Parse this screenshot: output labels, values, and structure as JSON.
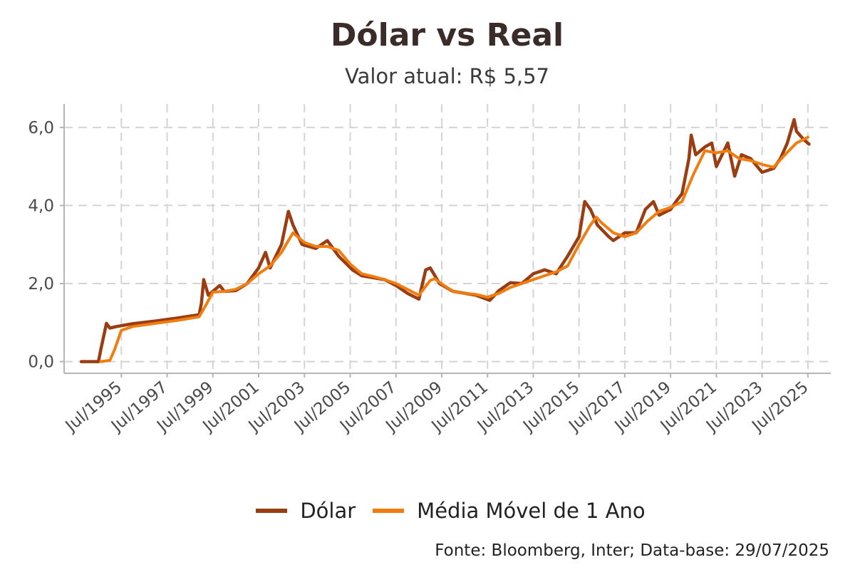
{
  "chart_data": {
    "type": "line",
    "title": "Dólar vs Real",
    "subtitle": "Valor atual: R$ 5,57",
    "source": "Fonte: Bloomberg, Inter; Data-base: 29/07/2025",
    "xlim": [
      1993.0,
      2026.5
    ],
    "ylim": [
      -0.3,
      6.6
    ],
    "y_ticks": [
      0,
      2,
      4,
      6
    ],
    "y_tick_labels": [
      "0,0",
      "2,0",
      "4,0",
      "6,0"
    ],
    "x_ticks": [
      1995.5,
      1997.5,
      1999.5,
      2001.5,
      2003.5,
      2005.5,
      2007.5,
      2009.5,
      2011.5,
      2013.5,
      2015.5,
      2017.5,
      2019.5,
      2021.5,
      2023.5,
      2025.5
    ],
    "x_tick_labels": [
      "Jul/1995",
      "Jul/1997",
      "Jul/1999",
      "Jul/2001",
      "Jul/2003",
      "Jul/2005",
      "Jul/2007",
      "Jul/2009",
      "Jul/2011",
      "Jul/2013",
      "Jul/2015",
      "Jul/2017",
      "Jul/2019",
      "Jul/2021",
      "Jul/2023",
      "Jul/2025"
    ],
    "grid": true,
    "legend_position": "bottom",
    "series": [
      {
        "name": "Dólar",
        "color": "#9a3d12",
        "points": [
          [
            1993.75,
            0.0
          ],
          [
            1994.5,
            0.0
          ],
          [
            1994.6,
            0.3
          ],
          [
            1994.85,
            0.98
          ],
          [
            1995.0,
            0.86
          ],
          [
            1995.3,
            0.9
          ],
          [
            1996.0,
            0.97
          ],
          [
            1997.0,
            1.04
          ],
          [
            1998.0,
            1.12
          ],
          [
            1998.9,
            1.2
          ],
          [
            1999.0,
            1.5
          ],
          [
            1999.1,
            2.1
          ],
          [
            1999.3,
            1.7
          ],
          [
            1999.8,
            1.95
          ],
          [
            2000.0,
            1.8
          ],
          [
            2000.5,
            1.82
          ],
          [
            2001.0,
            2.0
          ],
          [
            2001.5,
            2.4
          ],
          [
            2001.8,
            2.8
          ],
          [
            2002.0,
            2.4
          ],
          [
            2002.5,
            3.0
          ],
          [
            2002.8,
            3.85
          ],
          [
            2003.0,
            3.5
          ],
          [
            2003.4,
            3.0
          ],
          [
            2004.0,
            2.9
          ],
          [
            2004.5,
            3.1
          ],
          [
            2005.0,
            2.7
          ],
          [
            2005.6,
            2.35
          ],
          [
            2006.0,
            2.2
          ],
          [
            2007.0,
            2.1
          ],
          [
            2007.5,
            1.95
          ],
          [
            2008.0,
            1.75
          ],
          [
            2008.5,
            1.6
          ],
          [
            2008.8,
            2.35
          ],
          [
            2009.0,
            2.4
          ],
          [
            2009.4,
            2.0
          ],
          [
            2010.0,
            1.8
          ],
          [
            2011.0,
            1.7
          ],
          [
            2011.6,
            1.57
          ],
          [
            2012.0,
            1.82
          ],
          [
            2012.5,
            2.02
          ],
          [
            2013.0,
            2.0
          ],
          [
            2013.5,
            2.25
          ],
          [
            2014.0,
            2.35
          ],
          [
            2014.5,
            2.25
          ],
          [
            2015.0,
            2.7
          ],
          [
            2015.5,
            3.2
          ],
          [
            2015.75,
            4.1
          ],
          [
            2016.0,
            3.9
          ],
          [
            2016.3,
            3.5
          ],
          [
            2016.8,
            3.2
          ],
          [
            2017.0,
            3.1
          ],
          [
            2017.5,
            3.3
          ],
          [
            2018.0,
            3.3
          ],
          [
            2018.4,
            3.9
          ],
          [
            2018.75,
            4.1
          ],
          [
            2019.0,
            3.75
          ],
          [
            2019.5,
            3.9
          ],
          [
            2019.8,
            4.15
          ],
          [
            2020.0,
            4.3
          ],
          [
            2020.3,
            5.2
          ],
          [
            2020.4,
            5.8
          ],
          [
            2020.6,
            5.3
          ],
          [
            2021.0,
            5.5
          ],
          [
            2021.3,
            5.6
          ],
          [
            2021.5,
            5.0
          ],
          [
            2022.0,
            5.6
          ],
          [
            2022.3,
            4.75
          ],
          [
            2022.6,
            5.3
          ],
          [
            2023.0,
            5.2
          ],
          [
            2023.5,
            4.85
          ],
          [
            2024.0,
            4.95
          ],
          [
            2024.3,
            5.2
          ],
          [
            2024.6,
            5.6
          ],
          [
            2024.9,
            6.2
          ],
          [
            2025.0,
            5.9
          ],
          [
            2025.3,
            5.7
          ],
          [
            2025.55,
            5.57
          ]
        ]
      },
      {
        "name": "Média Móvel de 1 Ano",
        "color": "#f07d10",
        "points": [
          [
            1994.6,
            0.0
          ],
          [
            1995.0,
            0.03
          ],
          [
            1995.2,
            0.3
          ],
          [
            1995.5,
            0.8
          ],
          [
            1996.0,
            0.9
          ],
          [
            1997.0,
            0.98
          ],
          [
            1998.0,
            1.06
          ],
          [
            1998.9,
            1.15
          ],
          [
            1999.2,
            1.45
          ],
          [
            1999.5,
            1.78
          ],
          [
            2000.0,
            1.8
          ],
          [
            2000.5,
            1.85
          ],
          [
            2001.0,
            2.0
          ],
          [
            2001.5,
            2.25
          ],
          [
            2002.0,
            2.45
          ],
          [
            2002.5,
            2.8
          ],
          [
            2003.0,
            3.3
          ],
          [
            2003.5,
            3.05
          ],
          [
            2004.0,
            2.95
          ],
          [
            2004.5,
            2.95
          ],
          [
            2005.0,
            2.85
          ],
          [
            2005.5,
            2.5
          ],
          [
            2006.0,
            2.25
          ],
          [
            2006.5,
            2.18
          ],
          [
            2007.0,
            2.1
          ],
          [
            2007.5,
            2.0
          ],
          [
            2008.0,
            1.85
          ],
          [
            2008.5,
            1.7
          ],
          [
            2009.0,
            2.08
          ],
          [
            2009.2,
            2.12
          ],
          [
            2009.6,
            1.95
          ],
          [
            2010.0,
            1.8
          ],
          [
            2010.5,
            1.75
          ],
          [
            2011.0,
            1.72
          ],
          [
            2011.5,
            1.65
          ],
          [
            2012.0,
            1.75
          ],
          [
            2012.5,
            1.9
          ],
          [
            2013.0,
            2.0
          ],
          [
            2013.5,
            2.1
          ],
          [
            2014.0,
            2.2
          ],
          [
            2014.5,
            2.3
          ],
          [
            2015.0,
            2.45
          ],
          [
            2015.5,
            3.0
          ],
          [
            2016.0,
            3.5
          ],
          [
            2016.25,
            3.7
          ],
          [
            2016.5,
            3.55
          ],
          [
            2017.0,
            3.3
          ],
          [
            2017.5,
            3.2
          ],
          [
            2018.0,
            3.3
          ],
          [
            2018.5,
            3.6
          ],
          [
            2019.0,
            3.85
          ],
          [
            2019.5,
            3.95
          ],
          [
            2020.0,
            4.1
          ],
          [
            2020.5,
            4.8
          ],
          [
            2021.0,
            5.4
          ],
          [
            2021.5,
            5.35
          ],
          [
            2022.0,
            5.4
          ],
          [
            2022.5,
            5.2
          ],
          [
            2023.0,
            5.15
          ],
          [
            2023.5,
            5.05
          ],
          [
            2024.0,
            4.98
          ],
          [
            2024.5,
            5.3
          ],
          [
            2025.0,
            5.6
          ],
          [
            2025.5,
            5.75
          ]
        ]
      }
    ]
  }
}
